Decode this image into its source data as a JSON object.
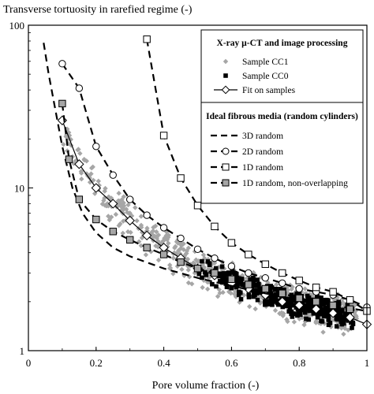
{
  "chart_data": {
    "type": "scatter",
    "ylabel": "Transverse tortuosity in rarefied regime (-)",
    "xlabel": "Pore volume fraction (-)",
    "xlim": [
      0,
      1
    ],
    "ylim": [
      1,
      100
    ],
    "yscale": "log",
    "x_ticks": [
      "0",
      "0.2",
      "0.4",
      "0.6",
      "0.8",
      "1"
    ],
    "y_ticks": [
      "1",
      "10",
      "100"
    ],
    "grid": false,
    "legend": {
      "placement": "top-right",
      "group1_title": "X-ray µ-CT and image processing",
      "group2_title": "Ideal fibrous media (random cylinders)",
      "entries": {
        "cc1": "Sample CC1",
        "cc0": "Sample CC0",
        "fit": "Fit on samples",
        "r3d": "3D random",
        "r2d": "2D random",
        "r1d": "1D random",
        "r1dno": "1D random, non-overlapping"
      }
    },
    "colors": {
      "cc1": "#a6a6a6",
      "cc0": "#000000",
      "r1dno_marker": "#a6a6a6"
    },
    "series": [
      {
        "name": "Fit on samples",
        "marker": "diamond-open",
        "x": [
          0.1,
          0.15,
          0.2,
          0.25,
          0.3,
          0.35,
          0.4,
          0.45,
          0.5,
          0.55,
          0.6,
          0.65,
          0.7,
          0.75,
          0.8,
          0.85,
          0.9,
          0.95,
          1.0
        ],
        "y": [
          26,
          14,
          10,
          8,
          6.3,
          5.1,
          4.3,
          3.7,
          3.2,
          2.9,
          2.6,
          2.4,
          2.2,
          2.0,
          1.9,
          1.8,
          1.7,
          1.6,
          1.45
        ]
      },
      {
        "name": "3D random",
        "marker": "none",
        "x": [
          0.045,
          0.06,
          0.08,
          0.1,
          0.13,
          0.16,
          0.2,
          0.25,
          0.3,
          0.4,
          0.5,
          0.6,
          0.7,
          0.8,
          0.9,
          1.0
        ],
        "y": [
          78,
          50,
          30,
          18,
          10,
          7,
          5.3,
          4.3,
          3.8,
          3.2,
          2.8,
          2.5,
          2.25,
          2.05,
          1.9,
          1.75
        ]
      },
      {
        "name": "2D random",
        "marker": "circle-open",
        "x": [
          0.1,
          0.15,
          0.2,
          0.25,
          0.3,
          0.35,
          0.4,
          0.45,
          0.5,
          0.55,
          0.6,
          0.65,
          0.7,
          0.75,
          0.8,
          0.85,
          0.9,
          0.95,
          1.0
        ],
        "y": [
          58,
          41,
          18,
          12,
          8.5,
          6.8,
          5.7,
          4.9,
          4.2,
          3.7,
          3.3,
          3.0,
          2.8,
          2.6,
          2.4,
          2.3,
          2.2,
          2.05,
          1.85
        ]
      },
      {
        "name": "1D random",
        "marker": "square-open",
        "x": [
          0.35,
          0.4,
          0.45,
          0.5,
          0.55,
          0.6,
          0.65,
          0.7,
          0.75,
          0.8,
          0.85,
          0.9,
          0.95,
          1.0
        ],
        "y": [
          82,
          21,
          11.5,
          7.8,
          5.8,
          4.6,
          3.9,
          3.4,
          3.0,
          2.7,
          2.45,
          2.3,
          2.05,
          1.75
        ]
      },
      {
        "name": "1D random, non-overlapping",
        "marker": "square-gray",
        "x": [
          0.1,
          0.12,
          0.15,
          0.2,
          0.25,
          0.3,
          0.35,
          0.4,
          0.45,
          0.5,
          0.55,
          0.6,
          0.65,
          0.7,
          0.75,
          0.8,
          0.85,
          0.9,
          0.95
        ],
        "y": [
          33,
          15,
          8.5,
          6.4,
          5.4,
          4.8,
          4.3,
          3.9,
          3.5,
          3.2,
          3.0,
          2.75,
          2.55,
          2.4,
          2.25,
          2.1,
          2.0,
          1.9,
          1.8
        ]
      }
    ],
    "scatter_clouds": [
      {
        "name": "Sample CC1",
        "marker": "diamond-gray",
        "count": 600,
        "x_range": [
          0.1,
          0.97
        ],
        "fit_ratio_range": [
          0.72,
          1.35
        ],
        "y_clip": [
          1.02,
          95
        ]
      },
      {
        "name": "Sample CC0",
        "marker": "square-black",
        "count": 380,
        "x_range": [
          0.5,
          0.96
        ],
        "fit_ratio_range": [
          0.82,
          1.22
        ],
        "y_clip": [
          1.02,
          95
        ]
      }
    ]
  }
}
